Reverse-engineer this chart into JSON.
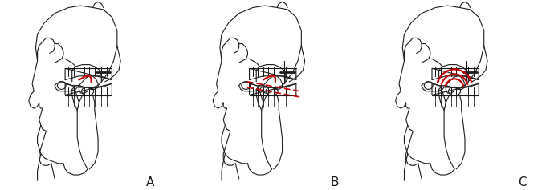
{
  "fig_width": 6.85,
  "fig_height": 2.37,
  "dpi": 100,
  "bg": "#ffffff",
  "lc": "#1a1a1a",
  "rc": "#cc0000",
  "lw": 0.8,
  "rlw": 1.2,
  "labels": [
    "A",
    "B",
    "C"
  ],
  "label_fs": 11
}
